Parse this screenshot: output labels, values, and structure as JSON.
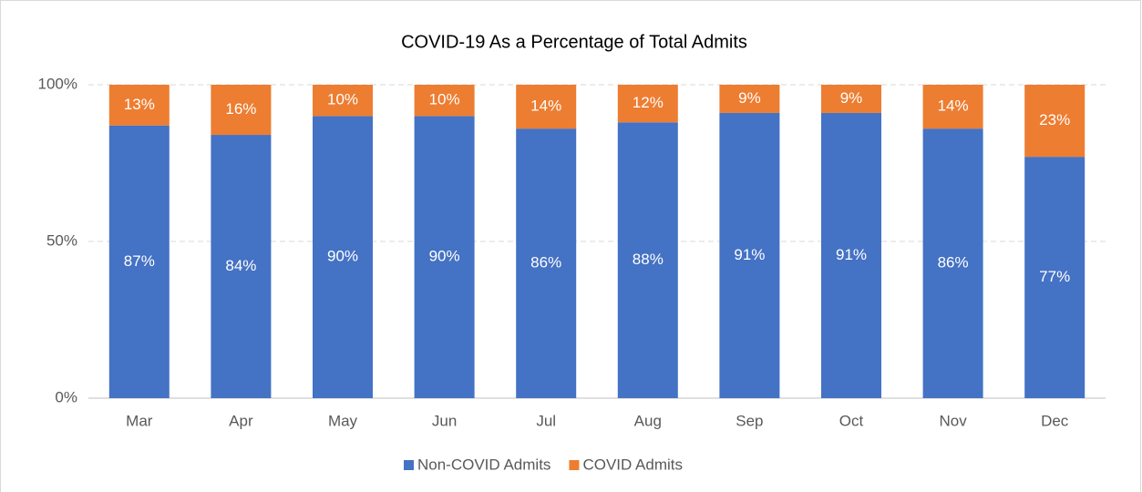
{
  "chart_data": {
    "type": "stacked-bar",
    "title": "COVID-19 As a Percentage of Total Admits",
    "categories": [
      "Mar",
      "Apr",
      "May",
      "Jun",
      "Jul",
      "Aug",
      "Sep",
      "Oct",
      "Nov",
      "Dec"
    ],
    "series": [
      {
        "name": "Non-COVID Admits",
        "color": "#4472c4",
        "values": [
          87,
          84,
          90,
          90,
          86,
          88,
          91,
          91,
          86,
          77
        ],
        "value_labels": [
          "87%",
          "84%",
          "90%",
          "90%",
          "86%",
          "88%",
          "91%",
          "91%",
          "86%",
          "77%"
        ]
      },
      {
        "name": "COVID Admits",
        "color": "#ed7d31",
        "values": [
          13,
          16,
          10,
          10,
          14,
          12,
          9,
          9,
          14,
          23
        ],
        "value_labels": [
          "13%",
          "16%",
          "10%",
          "10%",
          "14%",
          "12%",
          "9%",
          "9%",
          "14%",
          "23%"
        ]
      }
    ],
    "ylim": [
      0,
      100
    ],
    "yticks": [
      {
        "value": 0,
        "label": "0%"
      },
      {
        "value": 50,
        "label": "50%"
      },
      {
        "value": 100,
        "label": "100%"
      }
    ],
    "grid": true,
    "legend": "bottom"
  }
}
